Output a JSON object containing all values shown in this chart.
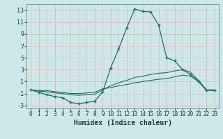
{
  "xlabel": "Humidex (Indice chaleur)",
  "bg_color": "#cce8e8",
  "grid_color": "#e8b8b8",
  "line_color": "#1a6e60",
  "xlim": [
    -0.5,
    23.5
  ],
  "ylim": [
    -3.5,
    14.0
  ],
  "yticks": [
    -3,
    -1,
    1,
    3,
    5,
    7,
    9,
    11,
    13
  ],
  "xticks": [
    0,
    1,
    2,
    3,
    4,
    5,
    6,
    7,
    8,
    9,
    10,
    11,
    12,
    13,
    14,
    15,
    16,
    17,
    18,
    19,
    20,
    21,
    22,
    23
  ],
  "line1_x": [
    0,
    1,
    2,
    3,
    4,
    5,
    6,
    7,
    8,
    9,
    10,
    11,
    12,
    13,
    14,
    15,
    16,
    17,
    18,
    19,
    20,
    21,
    22,
    23
  ],
  "line1_y": [
    -0.4,
    -0.8,
    -1.2,
    -1.5,
    -1.7,
    -2.5,
    -2.7,
    -2.5,
    -2.3,
    -0.7,
    3.3,
    6.5,
    10.0,
    13.2,
    12.8,
    12.7,
    10.5,
    5.0,
    4.5,
    3.0,
    2.2,
    1.0,
    -0.5,
    -0.5
  ],
  "line2_x": [
    0,
    1,
    2,
    3,
    4,
    5,
    6,
    7,
    8,
    9,
    10,
    11,
    12,
    13,
    14,
    15,
    16,
    17,
    18,
    19,
    20,
    21,
    22,
    23
  ],
  "line2_y": [
    -0.4,
    -0.6,
    -0.7,
    -0.9,
    -1.0,
    -1.2,
    -1.3,
    -1.2,
    -1.1,
    -0.4,
    0.3,
    0.8,
    1.2,
    1.7,
    1.9,
    2.2,
    2.4,
    2.5,
    2.8,
    3.0,
    2.6,
    1.2,
    -0.4,
    -0.4
  ],
  "line3_x": [
    0,
    1,
    2,
    3,
    4,
    5,
    6,
    7,
    8,
    9,
    10,
    11,
    12,
    13,
    14,
    15,
    16,
    17,
    18,
    19,
    20,
    21,
    22,
    23
  ],
  "line3_y": [
    -0.4,
    -0.5,
    -0.5,
    -0.7,
    -0.8,
    -1.0,
    -1.0,
    -0.9,
    -0.8,
    -0.2,
    0.0,
    0.3,
    0.5,
    0.8,
    1.0,
    1.2,
    1.4,
    1.5,
    1.8,
    2.1,
    1.9,
    1.0,
    -0.4,
    -0.4
  ]
}
